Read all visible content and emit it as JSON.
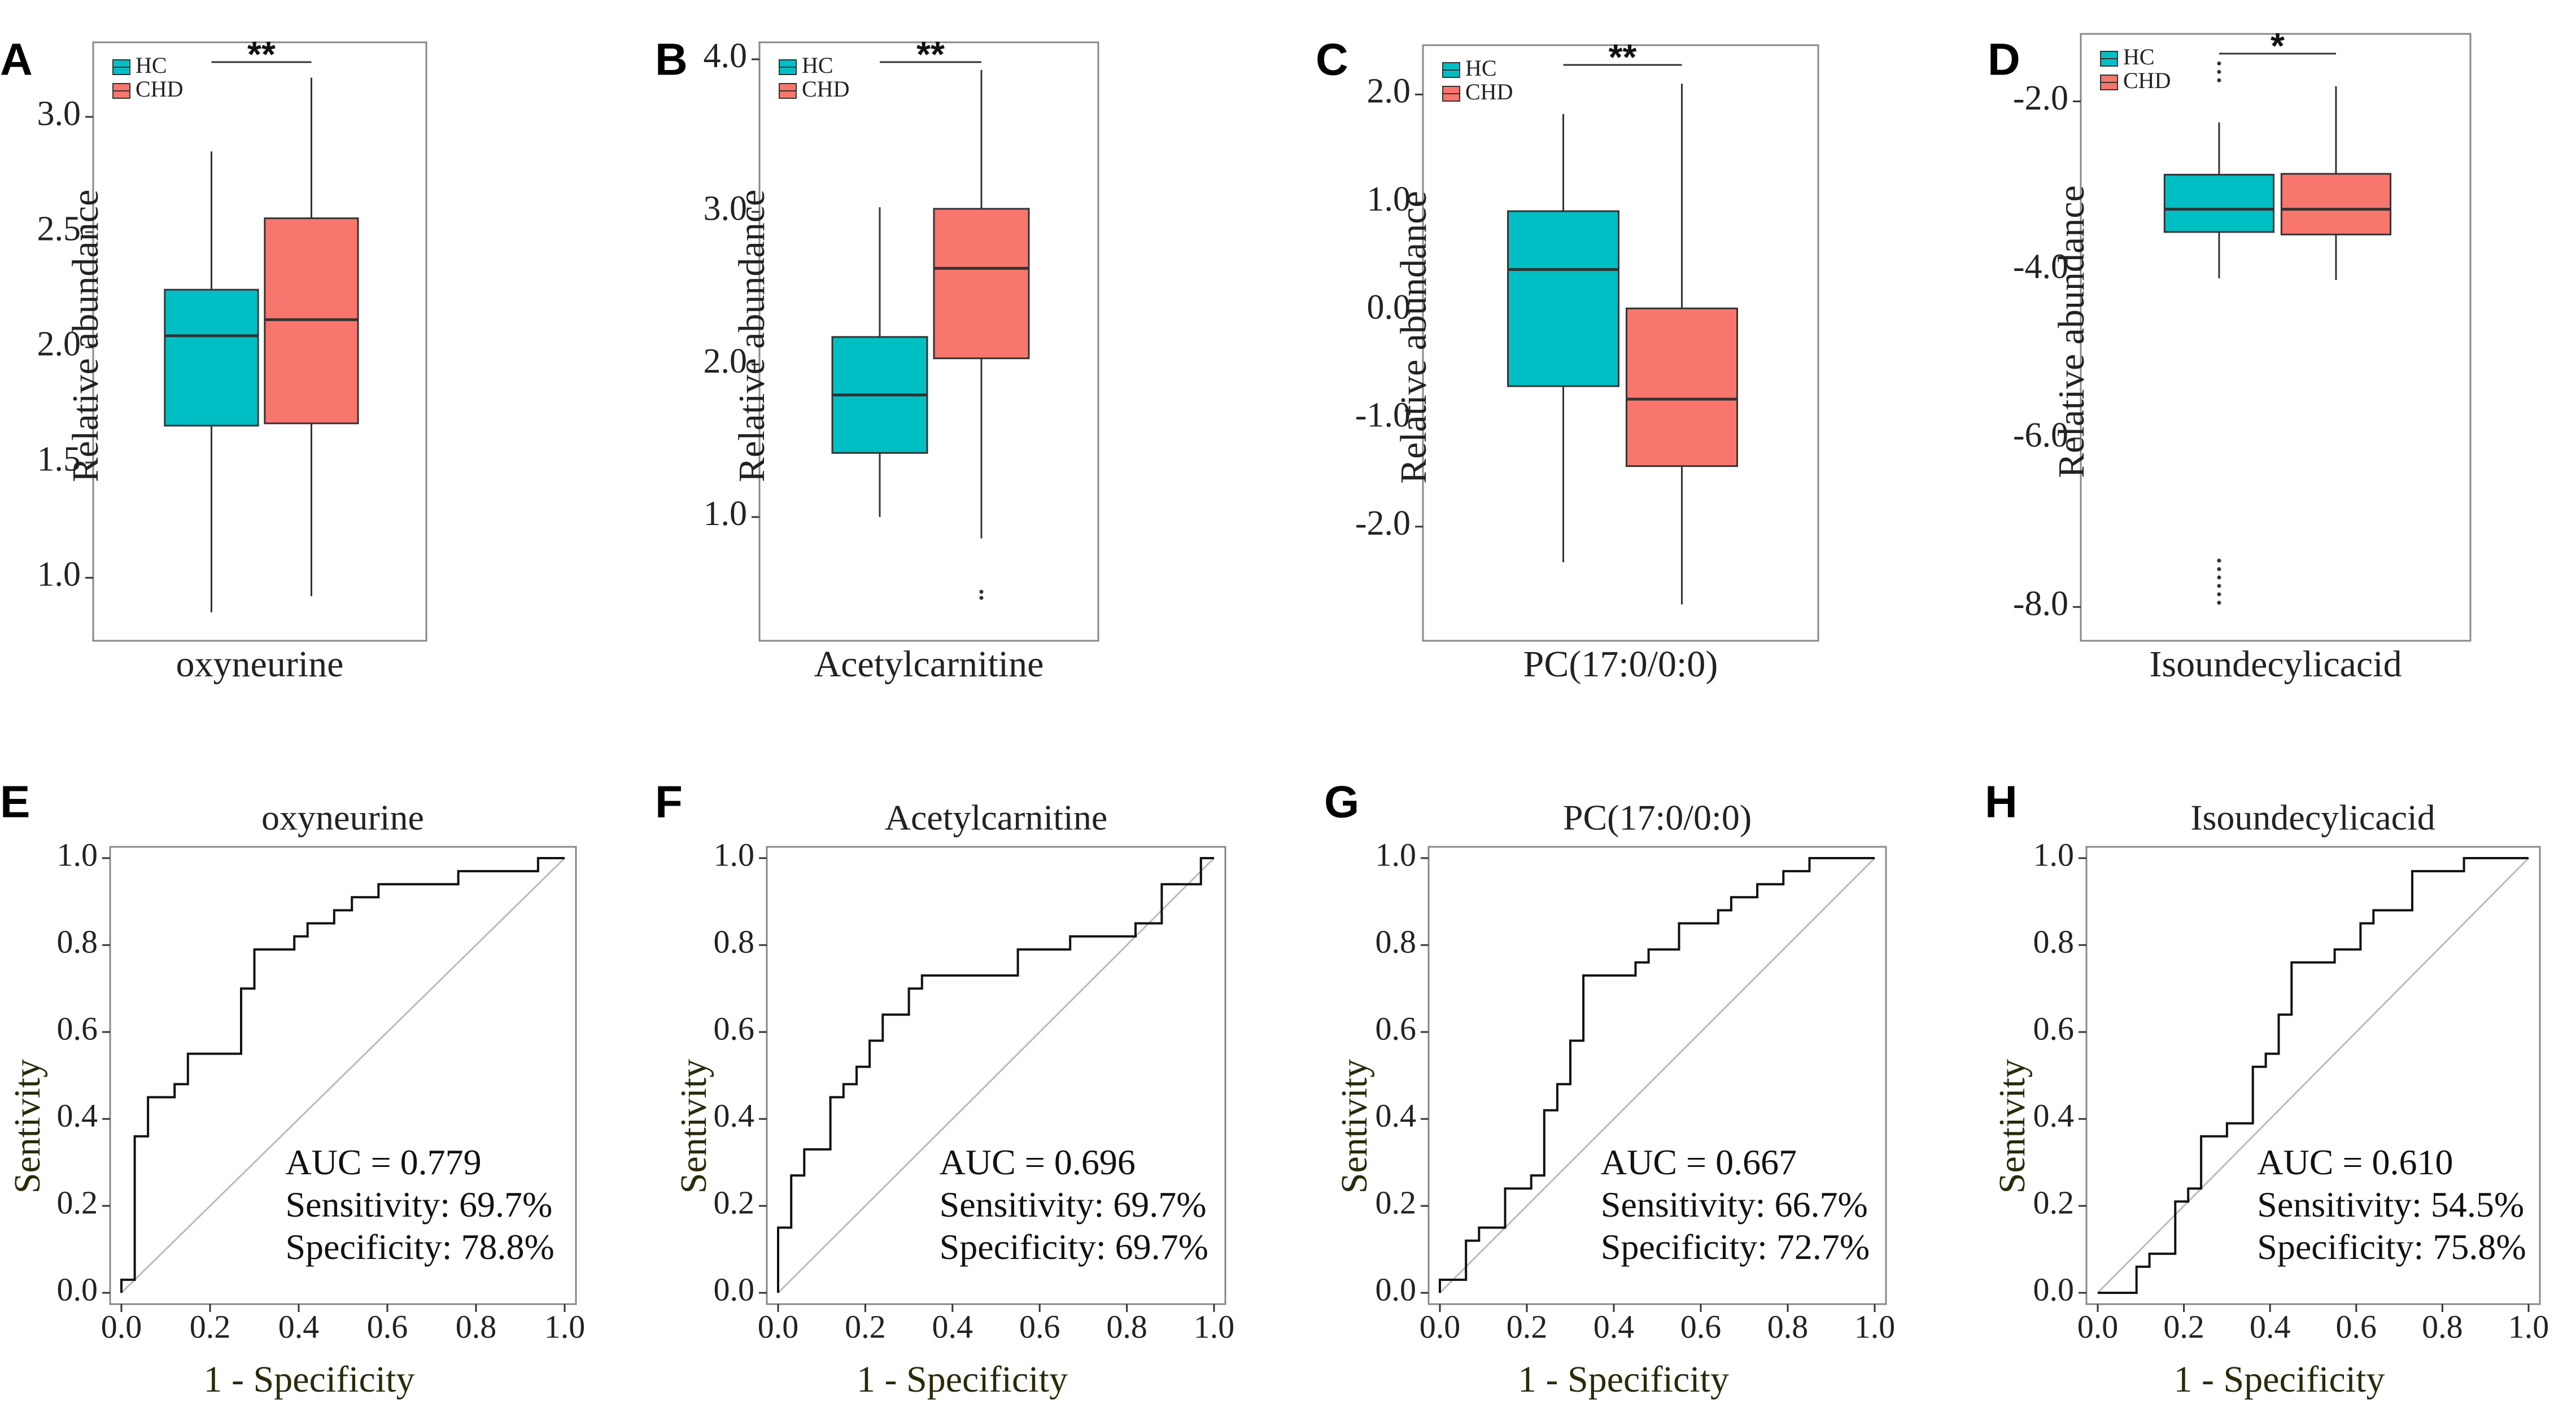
{
  "colors": {
    "hc": "#00BFC4",
    "chd": "#F8766D",
    "frame": "#888888",
    "line": "#333333",
    "diag": "#bbbbbb"
  },
  "chart_data": [
    {
      "type": "boxplot",
      "panel": "A",
      "xlabel": "oxyneurine",
      "ylabel": "Relative abundance",
      "ylim": [
        0.8,
        3.25
      ],
      "yticks": [
        1.0,
        1.5,
        2.0,
        2.5,
        3.0
      ],
      "ytick_labels": [
        "1.0",
        "1.5",
        "2.0",
        "2.5",
        "3.0"
      ],
      "legend": [
        "HC",
        "CHD"
      ],
      "significance": "**",
      "series": [
        {
          "name": "HC",
          "whisker_low": 0.85,
          "q1": 1.66,
          "median": 2.05,
          "q3": 2.25,
          "whisker_high": 2.85,
          "outliers": []
        },
        {
          "name": "CHD",
          "whisker_low": 0.92,
          "q1": 1.67,
          "median": 2.12,
          "q3": 2.56,
          "whisker_high": 3.17,
          "outliers": []
        }
      ]
    },
    {
      "type": "boxplot",
      "panel": "B",
      "xlabel": "Acetylcarnitine",
      "ylabel": "Relative abundance",
      "ylim": [
        0.3,
        4.0
      ],
      "yticks": [
        1.0,
        2.0,
        3.0,
        4.0
      ],
      "ytick_labels": [
        "1.0",
        "2.0",
        "3.0",
        "4.0"
      ],
      "legend": [
        "HC",
        "CHD"
      ],
      "significance": "**",
      "series": [
        {
          "name": "HC",
          "whisker_low": 1.0,
          "q1": 1.42,
          "median": 1.8,
          "q3": 2.18,
          "whisker_high": 3.03,
          "outliers": []
        },
        {
          "name": "CHD",
          "whisker_low": 0.86,
          "q1": 2.04,
          "median": 2.63,
          "q3": 3.02,
          "whisker_high": 3.93,
          "outliers": [
            0.47,
            0.51
          ]
        }
      ]
    },
    {
      "type": "boxplot",
      "panel": "C",
      "xlabel": "PC(17:0/0:0)",
      "ylabel": "Relative abundance",
      "ylim": [
        -2.9,
        2.3
      ],
      "yticks": [
        -2.0,
        -1.0,
        0.0,
        1.0,
        2.0
      ],
      "ytick_labels": [
        "-2.0",
        "-1.0",
        "0.0",
        "1.0",
        "2.0"
      ],
      "legend": [
        "HC",
        "CHD"
      ],
      "significance": "**",
      "series": [
        {
          "name": "HC",
          "whisker_low": -2.33,
          "q1": -0.7,
          "median": 0.38,
          "q3": 0.92,
          "whisker_high": 1.82,
          "outliers": []
        },
        {
          "name": "CHD",
          "whisker_low": -2.72,
          "q1": -1.44,
          "median": -0.82,
          "q3": 0.02,
          "whisker_high": 2.1,
          "outliers": []
        }
      ]
    },
    {
      "type": "boxplot",
      "panel": "D",
      "xlabel": "Isoundecylicacid",
      "ylabel": "Relative abundance",
      "ylim": [
        -8.2,
        -1.4
      ],
      "yticks": [
        -8.0,
        -6.0,
        -4.0,
        -2.0
      ],
      "ytick_labels": [
        "-8.0",
        "-6.0",
        "-4.0",
        "-2.0"
      ],
      "legend": [
        "HC",
        "CHD"
      ],
      "significance": "*",
      "series": [
        {
          "name": "HC",
          "whisker_low": -4.1,
          "q1": -3.55,
          "median": -3.28,
          "q3": -2.87,
          "whisker_high": -2.25,
          "outliers": [
            -1.55,
            -1.65,
            -1.75,
            -7.45,
            -7.55,
            -7.65,
            -7.75,
            -7.85,
            -7.95
          ]
        },
        {
          "name": "CHD",
          "whisker_low": -4.12,
          "q1": -3.58,
          "median": -3.28,
          "q3": -2.86,
          "whisker_high": -1.82,
          "outliers": []
        }
      ]
    },
    {
      "type": "roc",
      "panel": "E",
      "title": "oxyneurine",
      "xlabel": "1 - Specificity",
      "ylabel": "Sentivity",
      "xlim": [
        0,
        1
      ],
      "ylim": [
        0,
        1
      ],
      "ticks": [
        0.0,
        0.2,
        0.4,
        0.6,
        0.8,
        1.0
      ],
      "tick_labels": [
        "0.0",
        "0.2",
        "0.4",
        "0.6",
        "0.8",
        "1.0"
      ],
      "auc_text": "AUC = 0.779",
      "sensitivity_text": "Sensitivity: 69.7%",
      "specificity_text": "Specificity: 78.8%",
      "points": [
        [
          0,
          0
        ],
        [
          0,
          0.03
        ],
        [
          0.03,
          0.03
        ],
        [
          0.03,
          0.36
        ],
        [
          0.06,
          0.36
        ],
        [
          0.06,
          0.45
        ],
        [
          0.12,
          0.45
        ],
        [
          0.12,
          0.48
        ],
        [
          0.15,
          0.48
        ],
        [
          0.15,
          0.55
        ],
        [
          0.27,
          0.55
        ],
        [
          0.27,
          0.7
        ],
        [
          0.3,
          0.7
        ],
        [
          0.3,
          0.79
        ],
        [
          0.39,
          0.79
        ],
        [
          0.39,
          0.82
        ],
        [
          0.42,
          0.82
        ],
        [
          0.42,
          0.85
        ],
        [
          0.48,
          0.85
        ],
        [
          0.48,
          0.88
        ],
        [
          0.52,
          0.88
        ],
        [
          0.52,
          0.91
        ],
        [
          0.58,
          0.91
        ],
        [
          0.58,
          0.94
        ],
        [
          0.76,
          0.94
        ],
        [
          0.76,
          0.97
        ],
        [
          0.94,
          0.97
        ],
        [
          0.94,
          1.0
        ],
        [
          1,
          1
        ]
      ]
    },
    {
      "type": "roc",
      "panel": "F",
      "title": "Acetylcarnitine",
      "xlabel": "1 - Specificity",
      "ylabel": "Sentivity",
      "xlim": [
        0,
        1
      ],
      "ylim": [
        0,
        1
      ],
      "ticks": [
        0.0,
        0.2,
        0.4,
        0.6,
        0.8,
        1.0
      ],
      "tick_labels": [
        "0.0",
        "0.2",
        "0.4",
        "0.6",
        "0.8",
        "1.0"
      ],
      "auc_text": "AUC = 0.696",
      "sensitivity_text": "Sensitivity: 69.7%",
      "specificity_text": "Specificity: 69.7%",
      "points": [
        [
          0,
          0
        ],
        [
          0,
          0.15
        ],
        [
          0.03,
          0.15
        ],
        [
          0.03,
          0.27
        ],
        [
          0.06,
          0.27
        ],
        [
          0.06,
          0.33
        ],
        [
          0.12,
          0.33
        ],
        [
          0.12,
          0.45
        ],
        [
          0.15,
          0.45
        ],
        [
          0.15,
          0.48
        ],
        [
          0.18,
          0.48
        ],
        [
          0.18,
          0.52
        ],
        [
          0.21,
          0.52
        ],
        [
          0.21,
          0.58
        ],
        [
          0.24,
          0.58
        ],
        [
          0.24,
          0.64
        ],
        [
          0.3,
          0.64
        ],
        [
          0.3,
          0.7
        ],
        [
          0.33,
          0.7
        ],
        [
          0.33,
          0.73
        ],
        [
          0.55,
          0.73
        ],
        [
          0.55,
          0.79
        ],
        [
          0.67,
          0.79
        ],
        [
          0.67,
          0.82
        ],
        [
          0.82,
          0.82
        ],
        [
          0.82,
          0.85
        ],
        [
          0.88,
          0.85
        ],
        [
          0.88,
          0.94
        ],
        [
          0.97,
          0.94
        ],
        [
          0.97,
          1.0
        ],
        [
          1,
          1
        ]
      ]
    },
    {
      "type": "roc",
      "panel": "G",
      "title": "PC(17:0/0:0)",
      "xlabel": "1 - Specificity",
      "ylabel": "Sentivity",
      "xlim": [
        0,
        1
      ],
      "ylim": [
        0,
        1
      ],
      "ticks": [
        0.0,
        0.2,
        0.4,
        0.6,
        0.8,
        1.0
      ],
      "tick_labels": [
        "0.0",
        "0.2",
        "0.4",
        "0.6",
        "0.8",
        "1.0"
      ],
      "auc_text": "AUC = 0.667",
      "sensitivity_text": "Sensitivity: 66.7%",
      "specificity_text": "Specificity: 72.7%",
      "points": [
        [
          0,
          0
        ],
        [
          0,
          0.03
        ],
        [
          0.06,
          0.03
        ],
        [
          0.06,
          0.12
        ],
        [
          0.09,
          0.12
        ],
        [
          0.09,
          0.15
        ],
        [
          0.15,
          0.15
        ],
        [
          0.15,
          0.24
        ],
        [
          0.21,
          0.24
        ],
        [
          0.21,
          0.27
        ],
        [
          0.24,
          0.27
        ],
        [
          0.24,
          0.42
        ],
        [
          0.27,
          0.42
        ],
        [
          0.27,
          0.48
        ],
        [
          0.3,
          0.48
        ],
        [
          0.3,
          0.58
        ],
        [
          0.33,
          0.58
        ],
        [
          0.33,
          0.73
        ],
        [
          0.45,
          0.73
        ],
        [
          0.45,
          0.76
        ],
        [
          0.48,
          0.76
        ],
        [
          0.48,
          0.79
        ],
        [
          0.55,
          0.79
        ],
        [
          0.55,
          0.85
        ],
        [
          0.64,
          0.85
        ],
        [
          0.64,
          0.88
        ],
        [
          0.67,
          0.88
        ],
        [
          0.67,
          0.91
        ],
        [
          0.73,
          0.91
        ],
        [
          0.73,
          0.94
        ],
        [
          0.79,
          0.94
        ],
        [
          0.79,
          0.97
        ],
        [
          0.85,
          0.97
        ],
        [
          0.85,
          1.0
        ],
        [
          1,
          1
        ]
      ]
    },
    {
      "type": "roc",
      "panel": "H",
      "title": "Isoundecylicacid",
      "xlabel": "1 - Specificity",
      "ylabel": "Sentivity",
      "xlim": [
        0,
        1
      ],
      "ylim": [
        0,
        1
      ],
      "ticks": [
        0.0,
        0.2,
        0.4,
        0.6,
        0.8,
        1.0
      ],
      "tick_labels": [
        "0.0",
        "0.2",
        "0.4",
        "0.6",
        "0.8",
        "1.0"
      ],
      "auc_text": "AUC = 0.610",
      "sensitivity_text": "Sensitivity: 54.5%",
      "specificity_text": "Specificity: 75.8%",
      "points": [
        [
          0,
          0
        ],
        [
          0.09,
          0
        ],
        [
          0.09,
          0.06
        ],
        [
          0.12,
          0.06
        ],
        [
          0.12,
          0.09
        ],
        [
          0.18,
          0.09
        ],
        [
          0.18,
          0.21
        ],
        [
          0.21,
          0.21
        ],
        [
          0.21,
          0.24
        ],
        [
          0.24,
          0.24
        ],
        [
          0.24,
          0.36
        ],
        [
          0.3,
          0.36
        ],
        [
          0.3,
          0.39
        ],
        [
          0.36,
          0.39
        ],
        [
          0.36,
          0.52
        ],
        [
          0.39,
          0.52
        ],
        [
          0.39,
          0.55
        ],
        [
          0.42,
          0.55
        ],
        [
          0.42,
          0.64
        ],
        [
          0.45,
          0.64
        ],
        [
          0.45,
          0.76
        ],
        [
          0.55,
          0.76
        ],
        [
          0.55,
          0.79
        ],
        [
          0.61,
          0.79
        ],
        [
          0.61,
          0.85
        ],
        [
          0.64,
          0.85
        ],
        [
          0.64,
          0.88
        ],
        [
          0.73,
          0.88
        ],
        [
          0.73,
          0.97
        ],
        [
          0.85,
          0.97
        ],
        [
          0.85,
          1.0
        ],
        [
          1,
          1
        ]
      ]
    }
  ]
}
